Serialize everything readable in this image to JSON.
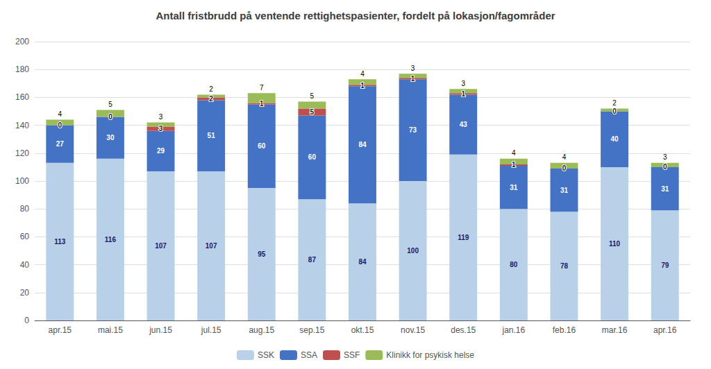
{
  "chart_data": {
    "type": "bar",
    "title": "Antall fristbrudd på ventende rettighetspasienter, fordelt på lokasjon/fagområder",
    "categories": [
      "apr.15",
      "mai.15",
      "jun.15",
      "jul.15",
      "aug.15",
      "sep.15",
      "okt.15",
      "nov.15",
      "des.15",
      "jan.16",
      "feb.16",
      "mar.16",
      "apr.16"
    ],
    "series": [
      {
        "name": "SSK",
        "color": "#b8d0e8",
        "values": [
          113,
          116,
          107,
          107,
          95,
          87,
          84,
          100,
          119,
          80,
          78,
          110,
          79
        ]
      },
      {
        "name": "SSA",
        "color": "#4472c4",
        "values": [
          27,
          30,
          29,
          51,
          60,
          60,
          84,
          73,
          43,
          31,
          31,
          40,
          31
        ]
      },
      {
        "name": "SSF",
        "color": "#c0504d",
        "values": [
          0,
          0,
          3,
          2,
          1,
          5,
          1,
          1,
          1,
          1,
          0,
          0,
          0
        ]
      },
      {
        "name": "Klinikk for psykisk helse",
        "color": "#9bbb59",
        "values": [
          4,
          5,
          3,
          2,
          7,
          5,
          4,
          3,
          3,
          4,
          4,
          2,
          3
        ]
      }
    ],
    "stacked": true,
    "data_labels": true,
    "ylim": [
      0,
      200
    ],
    "yticks": [
      0,
      20,
      40,
      60,
      80,
      100,
      120,
      140,
      160,
      180,
      200
    ],
    "grid": true,
    "legend": "bottom"
  }
}
